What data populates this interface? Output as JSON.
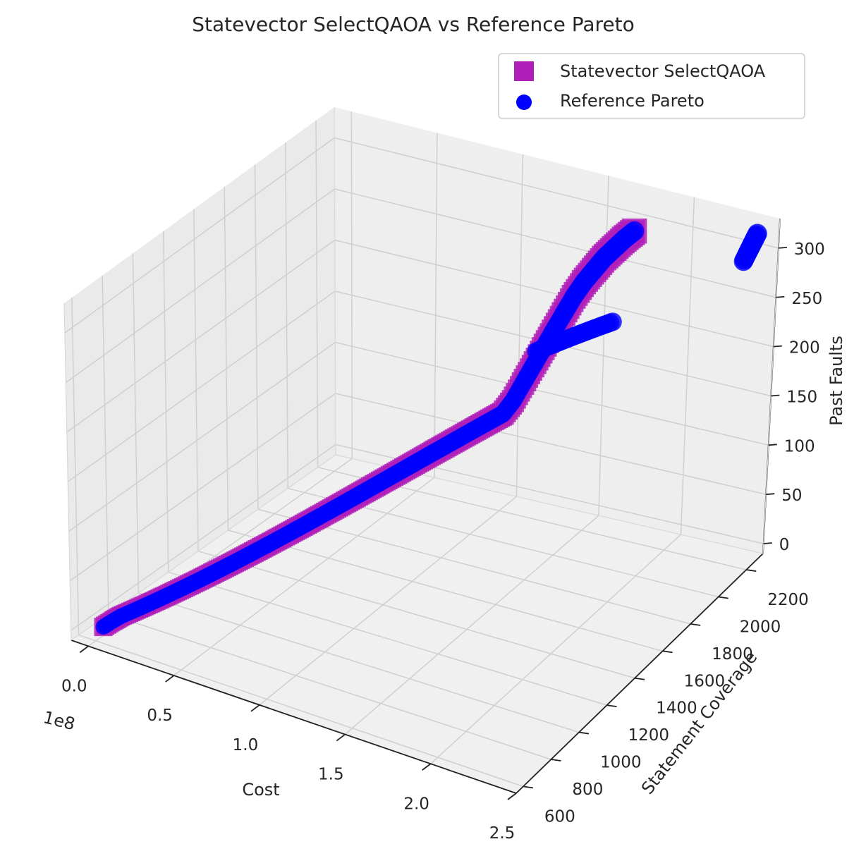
{
  "chart_data": {
    "type": "scatter",
    "projection": "3d",
    "title": "Statevector SelectQAOA vs Reference Pareto",
    "xlabel": "Cost",
    "ylabel": "Statement Coverage",
    "zlabel": "Past Faults",
    "x_offset_label": "1e8",
    "xlim": [
      -0.1,
      2.5
    ],
    "ylim": [
      550,
      2320
    ],
    "zlim": [
      -10,
      330
    ],
    "xticks": [
      "0.0",
      "0.5",
      "1.0",
      "1.5",
      "2.0",
      "2.5"
    ],
    "yticks": [
      "600",
      "800",
      "1000",
      "1200",
      "1400",
      "1600",
      "1800",
      "2000",
      "2200"
    ],
    "zticks": [
      "0",
      "50",
      "100",
      "150",
      "200",
      "250",
      "300"
    ],
    "grid": true,
    "legend_position": "upper right",
    "series": [
      {
        "name": "Statevector SelectQAOA",
        "marker": "square",
        "color": "#b020b8",
        "x": [
          0.01,
          0.05,
          0.08,
          0.12,
          0.16,
          0.2,
          0.24,
          0.28,
          0.32,
          0.36,
          0.4,
          0.44,
          0.48,
          0.52,
          0.56,
          0.6,
          0.64,
          0.68,
          0.72,
          0.76,
          0.8,
          0.84,
          0.88,
          0.92,
          0.96,
          1.0,
          1.04,
          1.08,
          1.12,
          1.16,
          1.2,
          1.24,
          1.28,
          1.32,
          1.36,
          1.4,
          1.44,
          1.48,
          1.52,
          1.56,
          1.6,
          1.64,
          1.68,
          1.72,
          1.76,
          1.8,
          1.84,
          1.88,
          1.92,
          1.96,
          2.0,
          2.04,
          2.08,
          2.12,
          2.16
        ],
        "y": [
          640,
          660,
          680,
          700,
          720,
          740,
          760,
          780,
          800,
          820,
          840,
          860,
          880,
          900,
          920,
          940,
          960,
          980,
          1000,
          1020,
          1040,
          1060,
          1080,
          1100,
          1120,
          1140,
          1160,
          1180,
          1200,
          1220,
          1240,
          1260,
          1280,
          1300,
          1320,
          1340,
          1360,
          1380,
          1400,
          1420,
          1440,
          1460,
          1480,
          1500,
          1520,
          1540,
          1560,
          1580,
          1600,
          1620,
          1640,
          1660,
          1680,
          1700,
          1720
        ],
        "z": [
          0,
          6,
          10,
          14,
          18,
          22,
          26,
          30,
          34,
          38,
          42,
          46,
          50,
          54,
          58,
          62,
          66,
          70,
          74,
          78,
          82,
          86,
          90,
          94,
          98,
          102,
          106,
          110,
          114,
          118,
          122,
          126,
          130,
          134,
          138,
          142,
          146,
          150,
          154,
          158,
          162,
          166,
          176,
          190,
          204,
          218,
          232,
          246,
          260,
          272,
          282,
          292,
          300,
          308,
          315
        ]
      },
      {
        "name": "Reference Pareto",
        "marker": "circle",
        "color": "#0000ff",
        "x": [
          0.01,
          0.05,
          0.08,
          0.12,
          0.16,
          0.2,
          0.24,
          0.28,
          0.32,
          0.36,
          0.4,
          0.44,
          0.48,
          0.52,
          0.56,
          0.6,
          0.64,
          0.68,
          0.72,
          0.76,
          0.8,
          0.84,
          0.88,
          0.92,
          0.96,
          1.0,
          1.04,
          1.08,
          1.12,
          1.16,
          1.2,
          1.24,
          1.28,
          1.32,
          1.36,
          1.4,
          1.44,
          1.48,
          1.52,
          1.56,
          1.6,
          1.64,
          1.68,
          1.72,
          1.76,
          1.8,
          1.84,
          1.88,
          1.92,
          1.96,
          2.0,
          2.04,
          2.08,
          2.12,
          2.16,
          1.76,
          1.8,
          1.84,
          1.88,
          1.92,
          1.96,
          2.0,
          2.4,
          2.41,
          2.42,
          2.43,
          2.44
        ],
        "y": [
          640,
          660,
          680,
          700,
          720,
          740,
          760,
          780,
          800,
          820,
          840,
          860,
          880,
          900,
          920,
          940,
          960,
          980,
          1000,
          1020,
          1040,
          1060,
          1080,
          1100,
          1120,
          1140,
          1160,
          1180,
          1200,
          1220,
          1240,
          1260,
          1280,
          1300,
          1320,
          1340,
          1360,
          1380,
          1400,
          1420,
          1440,
          1460,
          1480,
          1500,
          1520,
          1540,
          1560,
          1580,
          1600,
          1620,
          1640,
          1660,
          1680,
          1700,
          1720,
          1540,
          1580,
          1620,
          1660,
          1700,
          1740,
          1780,
          2200,
          2210,
          2220,
          2230,
          2240
        ],
        "z": [
          0,
          6,
          10,
          14,
          18,
          22,
          26,
          30,
          34,
          38,
          42,
          46,
          50,
          54,
          58,
          62,
          66,
          70,
          74,
          78,
          82,
          86,
          90,
          94,
          98,
          102,
          106,
          110,
          114,
          118,
          122,
          126,
          130,
          134,
          138,
          142,
          146,
          150,
          154,
          158,
          162,
          166,
          176,
          190,
          204,
          218,
          232,
          246,
          260,
          272,
          282,
          292,
          300,
          308,
          315,
          215,
          218,
          221,
          224,
          227,
          230,
          233,
          285,
          292,
          299,
          306,
          313
        ]
      }
    ]
  }
}
